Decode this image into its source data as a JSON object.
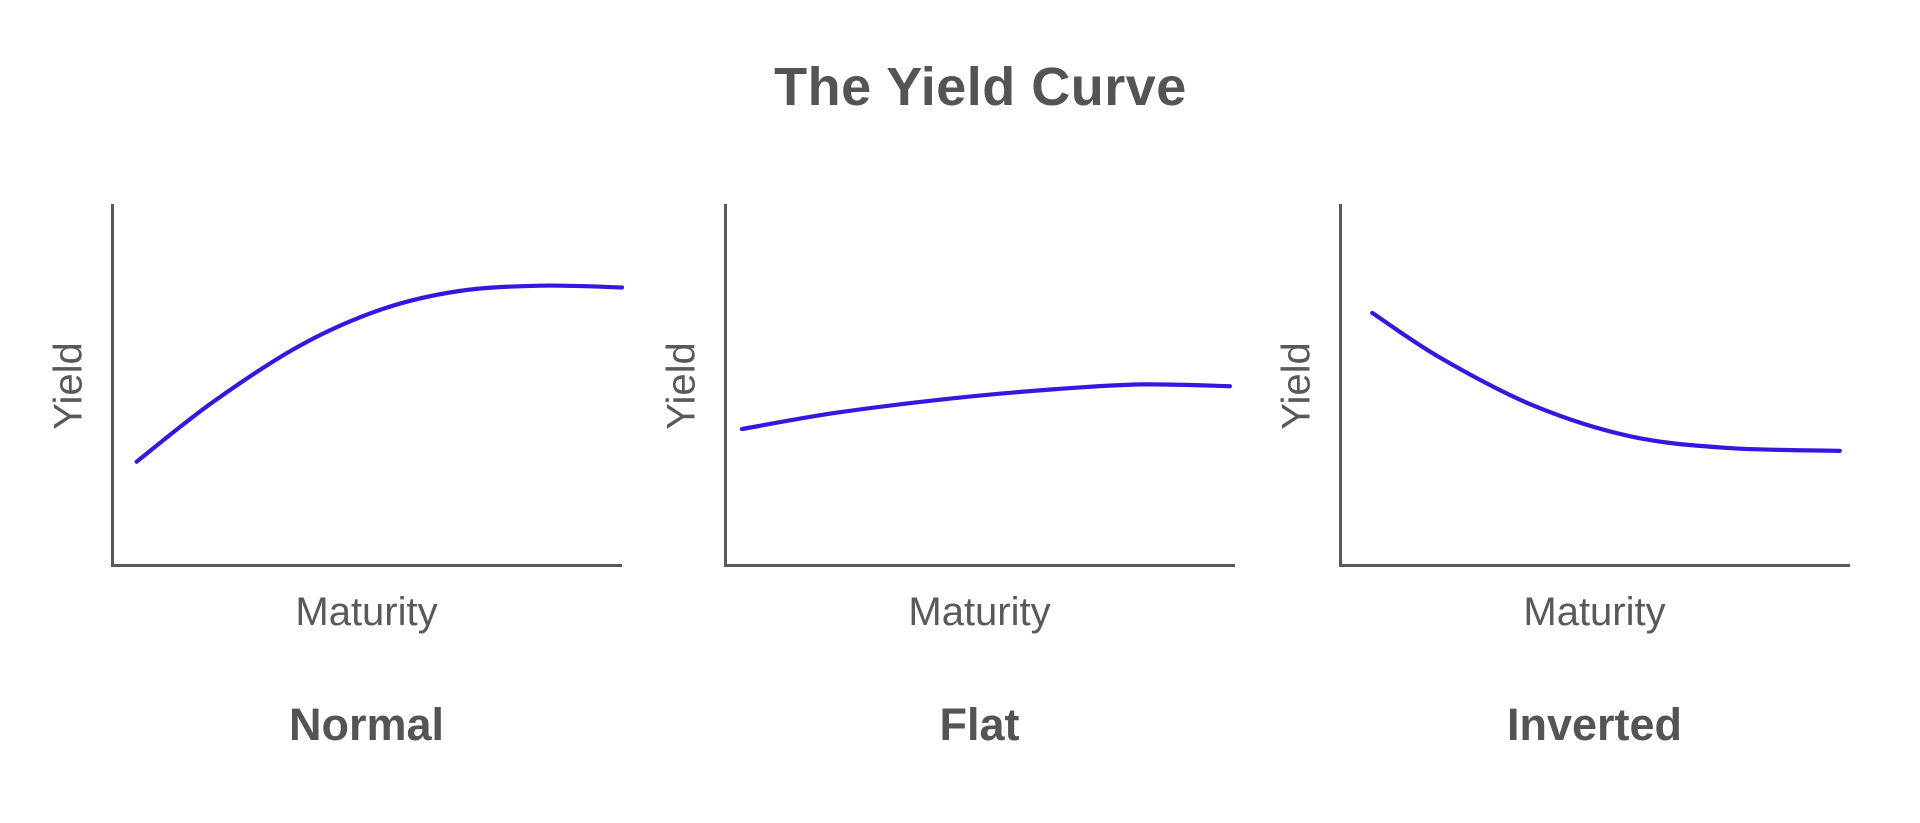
{
  "title": "The Yield Curve",
  "colors": {
    "curve": "#3318e0",
    "axis": "#595959",
    "title_text": "#545454",
    "axis_label_text": "#595959",
    "chart_label_text": "#545454",
    "background": "#ffffff"
  },
  "chart_data": {
    "type": "line",
    "title": "The Yield Curve",
    "legend": "none",
    "grid": false,
    "axis_ticks": "none (conceptual sketch, unlabeled axes)",
    "units": "normalized 0-100 of each plot area, y measured up from x-axis",
    "charts": [
      {
        "label": "Normal",
        "xlabel": "Maturity",
        "ylabel": "Yield",
        "description": "Upward-sloping yield curve that rises steeply then plateaus",
        "x_range": [
          0,
          100
        ],
        "y_range": [
          0,
          100
        ],
        "points": [
          [
            5,
            29
          ],
          [
            20,
            45.5
          ],
          [
            37,
            61
          ],
          [
            53,
            71
          ],
          [
            68,
            76
          ],
          [
            84,
            77.5
          ],
          [
            100,
            77
          ]
        ]
      },
      {
        "label": "Flat",
        "xlabel": "Maturity",
        "ylabel": "Yield",
        "description": "Nearly horizontal yield curve with a very slight upward drift",
        "x_range": [
          0,
          100
        ],
        "y_range": [
          0,
          100
        ],
        "points": [
          [
            3.5,
            38
          ],
          [
            22,
            42.5
          ],
          [
            45,
            46.5
          ],
          [
            65,
            49
          ],
          [
            82,
            50.3
          ],
          [
            99,
            49.8
          ]
        ]
      },
      {
        "label": "Inverted",
        "xlabel": "Maturity",
        "ylabel": "Yield",
        "description": "Downward-sloping yield curve that falls steeply then flattens",
        "x_range": [
          0,
          100
        ],
        "y_range": [
          0,
          100
        ],
        "points": [
          [
            6.5,
            70
          ],
          [
            20,
            57.5
          ],
          [
            38,
            44.5
          ],
          [
            57,
            36
          ],
          [
            76,
            32.8
          ],
          [
            98,
            32
          ]
        ]
      }
    ]
  }
}
